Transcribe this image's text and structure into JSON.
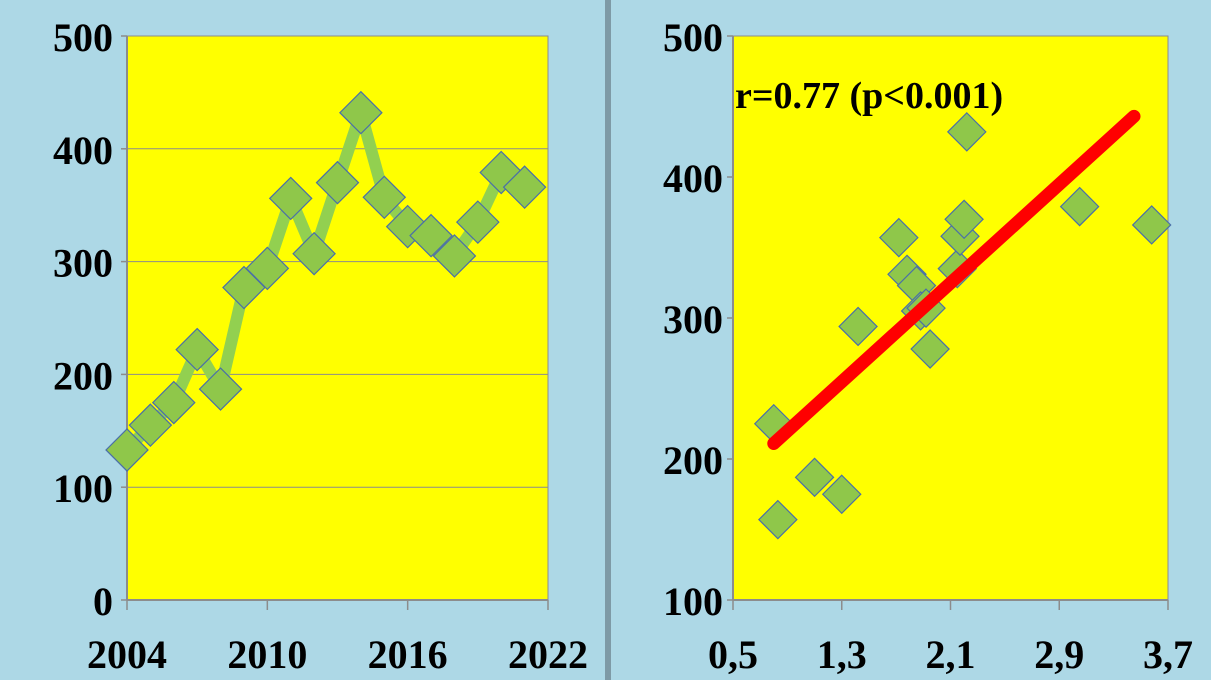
{
  "colors": {
    "background": "#add8e6",
    "plot_area": "#ffff00",
    "marker_fill": "#8fc74a",
    "marker_stroke": "#4a6fa8",
    "line": "#92d050",
    "regression": "#ff0000",
    "gridline": "#8c8c8c"
  },
  "chart_data": [
    {
      "type": "line",
      "title": "",
      "xlabel": "",
      "ylabel": "",
      "xlim": [
        2004,
        2022
      ],
      "ylim": [
        0,
        500
      ],
      "x_ticks": [
        "2004",
        "2010",
        "2016",
        "2022"
      ],
      "y_ticks": [
        "0",
        "100",
        "200",
        "300",
        "400",
        "500"
      ],
      "grid": "horizontal",
      "marker": "diamond",
      "series": [
        {
          "x": [
            2004,
            2005,
            2006,
            2007,
            2008,
            2009,
            2010,
            2011,
            2012,
            2013,
            2014,
            2015,
            2016,
            2017,
            2018,
            2019,
            2020,
            2021
          ],
          "values": [
            133,
            155,
            175,
            222,
            187,
            277,
            294,
            356,
            307,
            370,
            432,
            357,
            331,
            323,
            305,
            335,
            379,
            366
          ]
        }
      ]
    },
    {
      "type": "scatter",
      "title": "",
      "annotation": "r=0.77 (p<0.001)",
      "xlabel": "",
      "ylabel": "",
      "xlim": [
        0.5,
        3.7
      ],
      "ylim": [
        100,
        500
      ],
      "x_ticks": [
        "0,5",
        "1,3",
        "2,1",
        "2,9",
        "3,7"
      ],
      "y_ticks": [
        "100",
        "200",
        "300",
        "400",
        "500"
      ],
      "grid": "none",
      "marker": "diamond",
      "points": [
        {
          "x": 0.8,
          "y": 225
        },
        {
          "x": 0.83,
          "y": 157
        },
        {
          "x": 1.1,
          "y": 187
        },
        {
          "x": 1.3,
          "y": 175
        },
        {
          "x": 1.42,
          "y": 294
        },
        {
          "x": 1.72,
          "y": 357
        },
        {
          "x": 1.78,
          "y": 331
        },
        {
          "x": 1.85,
          "y": 323
        },
        {
          "x": 1.88,
          "y": 305
        },
        {
          "x": 1.92,
          "y": 307
        },
        {
          "x": 1.95,
          "y": 278
        },
        {
          "x": 2.15,
          "y": 335
        },
        {
          "x": 2.17,
          "y": 358
        },
        {
          "x": 2.2,
          "y": 370
        },
        {
          "x": 2.22,
          "y": 432
        },
        {
          "x": 3.05,
          "y": 379
        },
        {
          "x": 3.58,
          "y": 366
        }
      ],
      "regression": {
        "x1": 0.8,
        "y1": 211,
        "x2": 3.45,
        "y2": 443
      }
    }
  ]
}
